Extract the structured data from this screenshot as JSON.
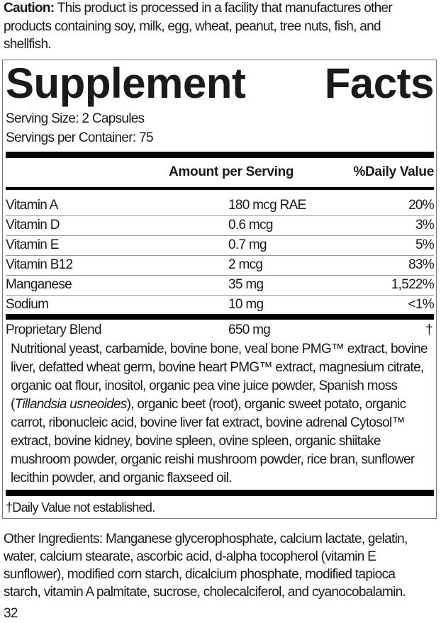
{
  "caution": {
    "label": "Caution:",
    "lines": [
      " This product is processed in a facility that manufactures other",
      "products containing soy, milk, egg, wheat, peanut, tree nuts, fish, and",
      "shellfish."
    ]
  },
  "facts": {
    "title_left": "Supplement",
    "title_right": "Facts",
    "serving_size": "Serving Size: 2 Capsules",
    "servings_per_container": "Servings per Container: 75",
    "col_amount": "Amount per Serving",
    "col_dv": "%Daily Value",
    "rows": [
      {
        "name": "Vitamin A",
        "amount": "180 mcg RAE",
        "dv": "20%"
      },
      {
        "name": "Vitamin D",
        "amount": "0.6 mcg",
        "dv": "3%"
      },
      {
        "name": "Vitamin E",
        "amount": "0.7 mg",
        "dv": "5%"
      },
      {
        "name": "Vitamin B12",
        "amount": "2 mcg",
        "dv": "83%"
      },
      {
        "name": "Manganese",
        "amount": "35 mg",
        "dv": "1,522%"
      },
      {
        "name": "Sodium",
        "amount": "10 mg",
        "dv": "<1%"
      }
    ],
    "blend": {
      "name": "Proprietary Blend",
      "amount": "650 mg",
      "dv": "†",
      "lines": [
        "Nutritional yeast, carbamide, bovine bone, veal bone PMG™ extract, bovine",
        "liver, defatted wheat germ, bovine heart PMG™ extract, magnesium citrate,",
        "organic oat flour, inositol, organic pea vine juice powder, Spanish moss",
        "(",
        "Tillandsia usneoides",
        "), organic beet (root), organic sweet potato, organic",
        "carrot, ribonucleic acid, bovine liver fat extract, bovine adrenal Cytosol™",
        "extract, bovine kidney, bovine spleen, ovine spleen, organic shiitake",
        "mushroom powder, organic reishi mushroom powder, rice bran, sunflower",
        "lecithin powder, and organic flaxseed oil."
      ]
    },
    "footnote": "†Daily Value not established."
  },
  "other_ingredients": [
    "Other Ingredients: Manganese glycerophosphate, calcium lactate, gelatin,",
    "water, calcium stearate, ascorbic acid, d-alpha tocopherol (vitamin E",
    "sunflower), modified corn starch, dicalcium phosphate, modified tapioca",
    "starch, vitamin A palmitate, sucrose, cholecalciferol, and cyanocobalamin."
  ],
  "page_number": "32"
}
